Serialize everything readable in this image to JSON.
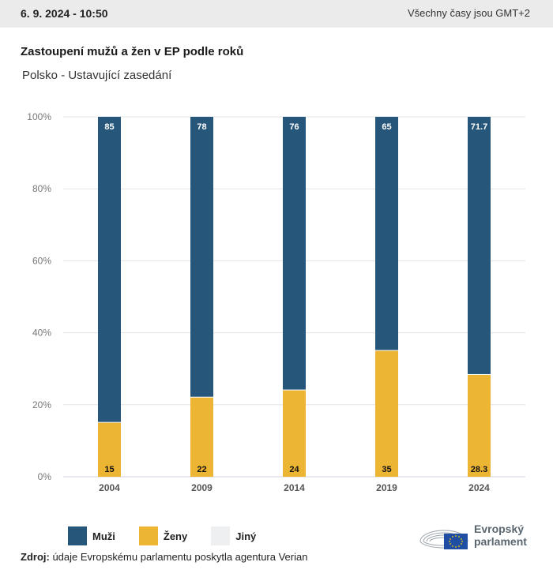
{
  "header": {
    "date": "6. 9. 2024 - 10:50",
    "timezone_note": "Všechny časy jsou GMT+2"
  },
  "title": "Zastoupení mužů a žen v EP podle roků",
  "subtitle": "Polsko - Ustavující zasedání",
  "colors": {
    "muzi": "#26567a",
    "zeny": "#ecb533",
    "jiny": "#eeeff1",
    "grid": "#e3e3e3",
    "baseline": "#ccd3de"
  },
  "chart_data": {
    "type": "bar",
    "stacked": true,
    "title": "Zastoupení mužů a žen v EP podle roků",
    "subtitle": "Polsko - Ustavující zasedání",
    "categories": [
      "2004",
      "2009",
      "2014",
      "2019",
      "2024"
    ],
    "series": [
      {
        "name": "Ženy",
        "values": [
          15,
          22,
          24,
          35,
          28.3
        ]
      },
      {
        "name": "Muži",
        "values": [
          85,
          78,
          76,
          65,
          71.7
        ]
      },
      {
        "name": "Jiný",
        "values": [
          0,
          0,
          0,
          0,
          0
        ]
      }
    ],
    "data_labels": {
      "Muži": [
        "85",
        "78",
        "76",
        "65",
        "71.7"
      ],
      "Ženy": [
        "15",
        "22",
        "24",
        "35",
        "28.3"
      ]
    },
    "xlabel": "",
    "ylabel": "",
    "ylim": [
      0,
      100
    ],
    "yticks": [
      "0%",
      "20%",
      "40%",
      "60%",
      "80%",
      "100%"
    ],
    "ytick_values": [
      0,
      20,
      40,
      60,
      80,
      100
    ],
    "grid": true,
    "legend": "bottom-left"
  },
  "legend": [
    {
      "label": "Muži",
      "color_key": "muzi"
    },
    {
      "label": "Ženy",
      "color_key": "zeny"
    },
    {
      "label": "Jiný",
      "color_key": "jiny"
    }
  ],
  "source": {
    "label": "Zdroj:",
    "text": " údaje Evropskému parlamentu poskytla agentura Verian"
  },
  "logo": {
    "line1": "Evropský",
    "line2": "parlament"
  }
}
